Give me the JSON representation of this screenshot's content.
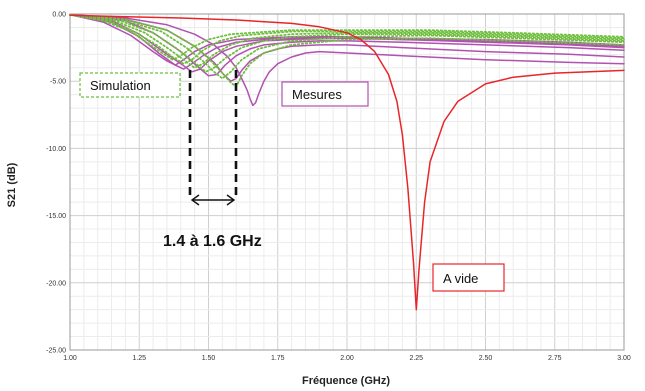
{
  "chart_data": {
    "type": "line",
    "title": "",
    "xlabel": "Fréquence (GHz)",
    "ylabel": "S21 (dB)",
    "xlim": [
      1.0,
      3.0
    ],
    "ylim": [
      -25.0,
      0.0
    ],
    "x_ticks": [
      "1.00",
      "1.25",
      "1.50",
      "1.75",
      "2.00",
      "2.25",
      "2.50",
      "2.75",
      "3.00"
    ],
    "y_ticks": [
      "0.00",
      "-5.00",
      "-10.00",
      "-15.00",
      "-20.00",
      "-25.00"
    ],
    "grid": true,
    "annotations": {
      "simulation": "Simulation",
      "mesures": "Mesures",
      "a_vide": "A vide",
      "range": "1.4 à 1.6 GHz"
    },
    "colors": {
      "a_vide": "#e8262a",
      "mesures": "#b152b1",
      "simulation": "#6fbf3f",
      "simulation_box": "#6fbf3f",
      "mesures_box": "#b152b1",
      "a_vide_box": "#e8262a"
    },
    "series": [
      {
        "group": "a_vide",
        "style": "solid",
        "x": [
          1.0,
          1.2,
          1.4,
          1.6,
          1.8,
          1.9,
          2.0,
          2.05,
          2.1,
          2.15,
          2.18,
          2.2,
          2.22,
          2.24,
          2.25,
          2.26,
          2.28,
          2.3,
          2.35,
          2.4,
          2.5,
          2.6,
          2.75,
          3.0
        ],
        "y": [
          -0.1,
          -0.2,
          -0.3,
          -0.45,
          -0.7,
          -0.95,
          -1.4,
          -1.9,
          -2.8,
          -4.5,
          -6.5,
          -9.0,
          -13.0,
          -18.5,
          -22.0,
          -19.0,
          -14.0,
          -11.0,
          -8.0,
          -6.5,
          -5.2,
          -4.7,
          -4.4,
          -4.2
        ]
      },
      {
        "group": "mesures",
        "style": "solid",
        "x": [
          1.0,
          1.2,
          1.35,
          1.45,
          1.52,
          1.57,
          1.6,
          1.62,
          1.64,
          1.65,
          1.66,
          1.67,
          1.68,
          1.7,
          1.72,
          1.75,
          1.8,
          1.85,
          1.9,
          2.0,
          2.2,
          2.5,
          2.8,
          3.0
        ],
        "y": [
          -0.05,
          -0.3,
          -0.8,
          -1.5,
          -2.3,
          -3.2,
          -4.0,
          -4.8,
          -5.7,
          -6.3,
          -6.8,
          -6.6,
          -6.0,
          -5.0,
          -4.3,
          -3.7,
          -3.2,
          -2.9,
          -2.8,
          -2.9,
          -3.1,
          -3.4,
          -3.6,
          -3.7
        ]
      },
      {
        "group": "mesures",
        "style": "solid",
        "x": [
          1.0,
          1.2,
          1.35,
          1.45,
          1.52,
          1.55,
          1.58,
          1.6,
          1.62,
          1.65,
          1.7,
          1.75,
          1.8,
          1.9,
          2.0,
          2.2,
          2.5,
          2.8,
          3.0
        ],
        "y": [
          -0.05,
          -0.4,
          -1.2,
          -2.4,
          -3.6,
          -4.4,
          -5.0,
          -4.8,
          -4.2,
          -3.5,
          -2.9,
          -2.6,
          -2.4,
          -2.3,
          -2.3,
          -2.5,
          -2.8,
          -3.0,
          -3.2
        ]
      },
      {
        "group": "mesures",
        "style": "solid",
        "x": [
          1.0,
          1.2,
          1.3,
          1.4,
          1.46,
          1.5,
          1.53,
          1.56,
          1.6,
          1.65,
          1.7,
          1.8,
          1.9,
          2.0,
          2.2,
          2.5,
          2.8,
          3.0
        ],
        "y": [
          -0.05,
          -0.5,
          -1.4,
          -2.8,
          -3.9,
          -4.6,
          -4.5,
          -3.8,
          -3.1,
          -2.6,
          -2.3,
          -2.1,
          -2.0,
          -2.0,
          -2.1,
          -2.3,
          -2.5,
          -2.7
        ]
      },
      {
        "group": "mesures",
        "style": "solid",
        "x": [
          1.0,
          1.15,
          1.25,
          1.33,
          1.4,
          1.44,
          1.47,
          1.5,
          1.55,
          1.6,
          1.7,
          1.8,
          2.0,
          2.2,
          2.5,
          2.8,
          3.0
        ],
        "y": [
          -0.05,
          -0.5,
          -1.5,
          -2.7,
          -3.7,
          -4.3,
          -4.1,
          -3.5,
          -2.8,
          -2.4,
          -2.0,
          -1.9,
          -1.8,
          -1.9,
          -2.1,
          -2.3,
          -2.5
        ]
      },
      {
        "group": "mesures",
        "style": "solid",
        "x": [
          1.0,
          1.15,
          1.25,
          1.32,
          1.38,
          1.41,
          1.44,
          1.48,
          1.53,
          1.6,
          1.7,
          1.8,
          2.0,
          2.2,
          2.5,
          2.8,
          3.0
        ],
        "y": [
          -0.05,
          -0.6,
          -1.7,
          -2.9,
          -3.8,
          -4.1,
          -3.7,
          -3.1,
          -2.5,
          -2.1,
          -1.9,
          -1.8,
          -1.8,
          -1.9,
          -2.0,
          -2.2,
          -2.4
        ]
      },
      {
        "group": "mesures",
        "style": "solid",
        "x": [
          1.0,
          1.12,
          1.22,
          1.3,
          1.35,
          1.38,
          1.41,
          1.45,
          1.5,
          1.6,
          1.7,
          1.8,
          2.0,
          2.2,
          2.5,
          2.8,
          3.0
        ],
        "y": [
          -0.05,
          -0.6,
          -1.6,
          -2.8,
          -3.5,
          -3.8,
          -3.4,
          -2.8,
          -2.3,
          -1.9,
          -1.8,
          -1.7,
          -1.7,
          -1.8,
          -1.9,
          -2.1,
          -2.3
        ]
      },
      {
        "group": "simulation",
        "style": "dotted",
        "x": [
          1.0,
          1.2,
          1.35,
          1.45,
          1.5,
          1.55,
          1.58,
          1.6,
          1.62,
          1.65,
          1.7,
          1.8,
          2.0,
          2.3,
          2.6,
          3.0
        ],
        "y": [
          -0.05,
          -0.4,
          -1.2,
          -2.4,
          -3.3,
          -4.4,
          -5.1,
          -5.4,
          -4.6,
          -3.7,
          -2.9,
          -2.3,
          -1.9,
          -1.8,
          -2.0,
          -2.3
        ]
      },
      {
        "group": "simulation",
        "style": "dotted",
        "x": [
          1.0,
          1.2,
          1.33,
          1.42,
          1.48,
          1.52,
          1.55,
          1.58,
          1.62,
          1.68,
          1.8,
          2.0,
          2.3,
          2.6,
          3.0
        ],
        "y": [
          -0.05,
          -0.5,
          -1.3,
          -2.5,
          -3.5,
          -4.3,
          -4.8,
          -4.3,
          -3.4,
          -2.6,
          -2.0,
          -1.7,
          -1.6,
          -1.8,
          -2.1
        ]
      },
      {
        "group": "simulation",
        "style": "dotted",
        "x": [
          1.0,
          1.18,
          1.3,
          1.38,
          1.45,
          1.49,
          1.52,
          1.56,
          1.62,
          1.7,
          1.8,
          2.0,
          2.3,
          2.6,
          3.0
        ],
        "y": [
          -0.05,
          -0.5,
          -1.4,
          -2.5,
          -3.6,
          -4.3,
          -4.0,
          -3.3,
          -2.5,
          -2.0,
          -1.7,
          -1.5,
          -1.5,
          -1.7,
          -2.0
        ]
      },
      {
        "group": "simulation",
        "style": "dotted",
        "x": [
          1.0,
          1.16,
          1.27,
          1.35,
          1.41,
          1.45,
          1.48,
          1.52,
          1.58,
          1.66,
          1.8,
          2.0,
          2.3,
          2.6,
          3.0
        ],
        "y": [
          -0.05,
          -0.5,
          -1.4,
          -2.5,
          -3.4,
          -4.0,
          -3.7,
          -3.0,
          -2.3,
          -1.8,
          -1.5,
          -1.4,
          -1.4,
          -1.6,
          -1.9
        ]
      },
      {
        "group": "simulation",
        "style": "dotted",
        "x": [
          1.0,
          1.14,
          1.24,
          1.32,
          1.37,
          1.41,
          1.44,
          1.48,
          1.54,
          1.62,
          1.8,
          2.0,
          2.3,
          2.6,
          3.0
        ],
        "y": [
          -0.05,
          -0.5,
          -1.4,
          -2.4,
          -3.2,
          -3.7,
          -3.4,
          -2.7,
          -2.0,
          -1.6,
          -1.3,
          -1.3,
          -1.3,
          -1.5,
          -1.8
        ]
      },
      {
        "group": "simulation",
        "style": "dotted",
        "x": [
          1.0,
          1.12,
          1.22,
          1.29,
          1.34,
          1.37,
          1.4,
          1.44,
          1.5,
          1.58,
          1.8,
          2.0,
          2.3,
          2.6,
          3.0
        ],
        "y": [
          -0.05,
          -0.5,
          -1.3,
          -2.3,
          -3.0,
          -3.4,
          -3.1,
          -2.5,
          -1.9,
          -1.5,
          -1.2,
          -1.2,
          -1.2,
          -1.4,
          -1.7
        ]
      }
    ]
  }
}
